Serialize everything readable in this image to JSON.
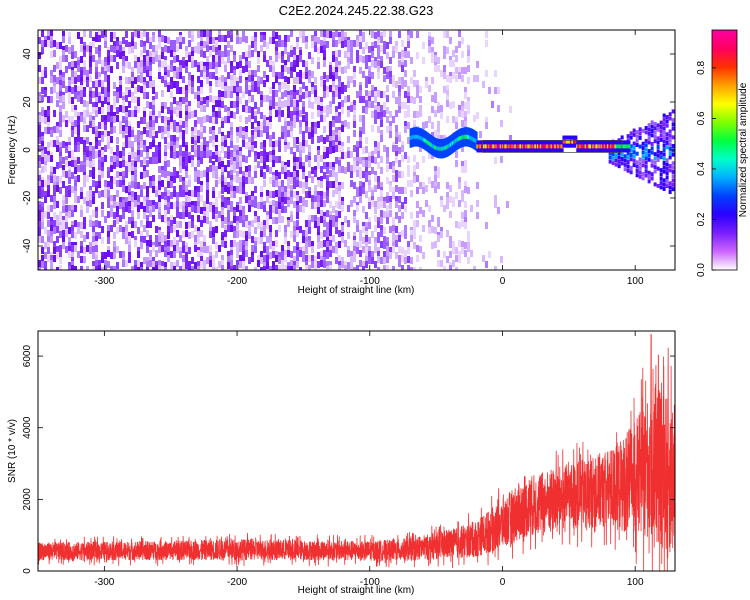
{
  "figure": {
    "title": "C2E2.2024.245.22.38.G23"
  },
  "chart_data": [
    {
      "type": "heatmap",
      "title": "C2E2.2024.245.22.38.G23",
      "xlabel": "Height of straight line (km)",
      "ylabel": "Frequency (Hz)",
      "xlim": [
        -350,
        130
      ],
      "ylim": [
        -50,
        50
      ],
      "xticks": [
        -300,
        -200,
        -100,
        0,
        100
      ],
      "yticks": [
        -40,
        -20,
        0,
        20,
        40
      ],
      "grid": false,
      "colorbar": {
        "label": "Normalized spectral amplitude",
        "range": [
          0,
          0.95
        ],
        "ticks": [
          0.0,
          0.2,
          0.4,
          0.6,
          0.8
        ],
        "colors": [
          "#ffffff",
          "#cc66ff",
          "#7a1fff",
          "#2a00ff",
          "#0040ff",
          "#00b0ff",
          "#00ffc8",
          "#00ff40",
          "#80ff00",
          "#ffff00",
          "#ffa000",
          "#ff3000",
          "#ff0060",
          "#ff00a0"
        ]
      },
      "signal_line": {
        "x_start": -70,
        "x_end": 130,
        "frequency": 1.5,
        "description_of_structure": "strong narrow line near 1-2 Hz from about -20 to 85 km, noise broadband below -70 km"
      }
    },
    {
      "type": "line",
      "xlabel": "Height of straight line (km)",
      "ylabel": "SNR (10 * v/v)",
      "xlim": [
        -350,
        130
      ],
      "ylim": [
        0,
        6700
      ],
      "xticks": [
        -300,
        -200,
        -100,
        0,
        100
      ],
      "yticks": [
        0,
        2000,
        4000,
        6000
      ],
      "grid": false,
      "color": "#f03030",
      "envelope": {
        "x": [
          -350,
          -300,
          -250,
          -200,
          -150,
          -100,
          -70,
          -50,
          -30,
          -20,
          -10,
          0,
          10,
          20,
          40,
          60,
          80,
          90,
          100,
          110,
          120,
          130
        ],
        "mean": [
          550,
          560,
          570,
          600,
          580,
          560,
          600,
          700,
          800,
          900,
          1100,
          1300,
          1600,
          1800,
          2000,
          2150,
          2300,
          2400,
          2600,
          2900,
          2800,
          2600
        ],
        "spread": [
          250,
          260,
          270,
          300,
          280,
          280,
          320,
          380,
          450,
          520,
          600,
          700,
          800,
          850,
          900,
          950,
          1100,
          1300,
          1600,
          2000,
          2200,
          2300
        ]
      },
      "peak": {
        "x": 112,
        "y": 6600
      }
    }
  ]
}
